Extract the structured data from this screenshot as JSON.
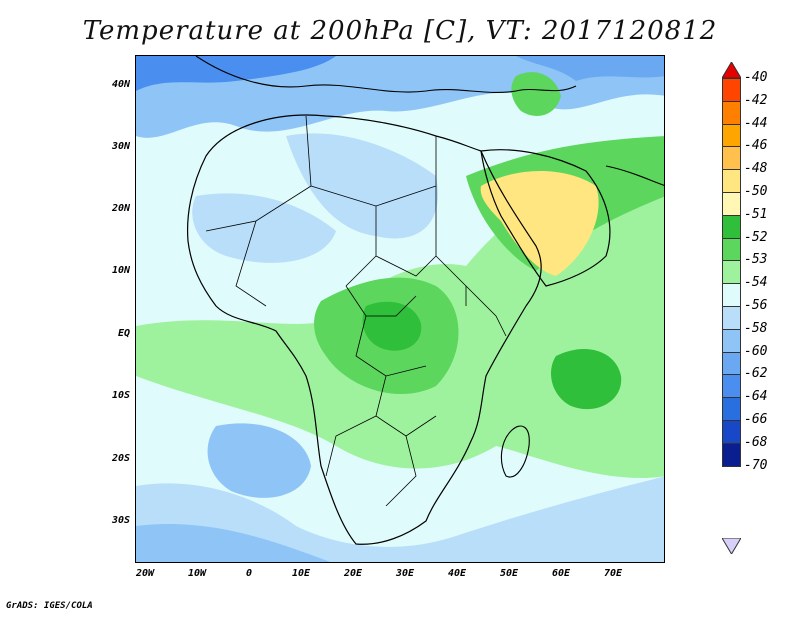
{
  "title": "Temperature at 200hPa [C], VT: 2017120812",
  "footer": "GrADS: IGES/COLA",
  "lat_labels": [
    "40N",
    "30N",
    "20N",
    "10N",
    "EQ",
    "10S",
    "20S",
    "30S"
  ],
  "lon_labels": [
    "20W",
    "10W",
    "0",
    "10E",
    "20E",
    "30E",
    "40E",
    "50E",
    "60E",
    "70E"
  ],
  "colorbar": {
    "labels": [
      "-40",
      "-42",
      "-44",
      "-46",
      "-48",
      "-50",
      "-51",
      "-52",
      "-53",
      "-54",
      "-56",
      "-58",
      "-60",
      "-62",
      "-64",
      "-66",
      "-68",
      "-70"
    ],
    "colors": [
      "#e60000",
      "#ff4500",
      "#ff7f00",
      "#ffa500",
      "#ffc04d",
      "#ffe680",
      "#fff7b3",
      "#2fbf3a",
      "#5cd65c",
      "#9ef29e",
      "#e0fbfb",
      "#b8defa",
      "#8fc4f7",
      "#6aa9f2",
      "#4a8ef0",
      "#2a6fe0",
      "#1848c8",
      "#0a1e90",
      "#08105a"
    ],
    "over_color": "#e60000",
    "under_color": "#d8d0f8"
  }
}
